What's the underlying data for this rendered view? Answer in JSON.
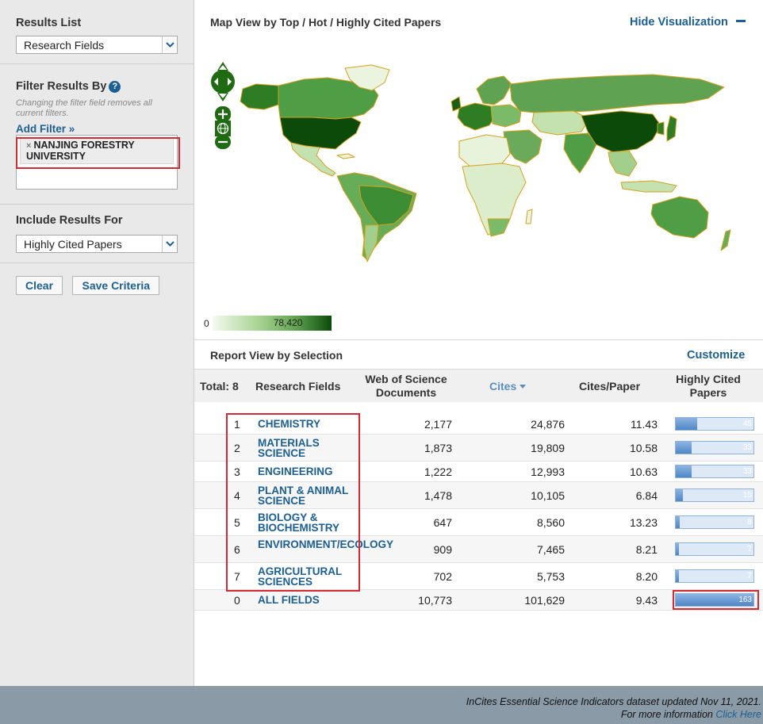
{
  "sidebar": {
    "results_list": {
      "title": "Results List",
      "selected": "Research Fields"
    },
    "filter": {
      "title": "Filter Results By",
      "help": "?",
      "hint": "Changing the filter field removes all current filters.",
      "add_filter": "Add Filter »",
      "chip": "NANJING FORESTRY UNIVERSITY",
      "chip_remove": "×"
    },
    "include": {
      "title": "Include Results For",
      "selected": "Highly Cited Papers"
    },
    "buttons": {
      "clear": "Clear",
      "save": "Save Criteria"
    }
  },
  "map_panel": {
    "title": "Map View by Top / Hot / Highly Cited Papers",
    "hide": "Hide Visualization",
    "legend_min": "0",
    "legend_max": "78,420"
  },
  "report": {
    "title": "Report View by Selection",
    "customize": "Customize",
    "headers": {
      "total": "Total: 8",
      "field": "Research Fields",
      "docs": "Web of Science Documents",
      "cites": "Cites",
      "cpp": "Cites/Paper",
      "hcp": "Highly Cited Papers"
    },
    "hcp_max": 163,
    "rows": [
      {
        "rank": "1",
        "field": "CHEMISTRY",
        "docs": "2,177",
        "cites": "24,876",
        "cpp": "11.43",
        "hcp": "45"
      },
      {
        "rank": "2",
        "field": "MATERIALS SCIENCE",
        "docs": "1,873",
        "cites": "19,809",
        "cpp": "10.58",
        "hcp": "33"
      },
      {
        "rank": "3",
        "field": "ENGINEERING",
        "docs": "1,222",
        "cites": "12,993",
        "cpp": "10.63",
        "hcp": "33"
      },
      {
        "rank": "4",
        "field": "PLANT & ANIMAL SCIENCE",
        "docs": "1,478",
        "cites": "10,105",
        "cpp": "6.84",
        "hcp": "15"
      },
      {
        "rank": "5",
        "field": "BIOLOGY & BIOCHEMISTRY",
        "docs": "647",
        "cites": "8,560",
        "cpp": "13.23",
        "hcp": "8"
      },
      {
        "rank": "6",
        "field": "ENVIRONMENT/ECOLOGY",
        "docs": "909",
        "cites": "7,465",
        "cpp": "8.21",
        "hcp": "7"
      },
      {
        "rank": "7",
        "field": "AGRICULTURAL SCIENCES",
        "docs": "702",
        "cites": "5,753",
        "cpp": "8.20",
        "hcp": "7"
      },
      {
        "rank": "0",
        "field": "ALL FIELDS",
        "docs": "10,773",
        "cites": "101,629",
        "cpp": "9.43",
        "hcp": "163"
      }
    ]
  },
  "footer": {
    "line1": "InCites Essential Science Indicators dataset updated Nov 11, 2021.",
    "line2": "For more information",
    "link": "Click Here"
  },
  "colors": {
    "accent": "#1b5f93",
    "highlight": "#d52a34",
    "map_dark": "#0b4a08"
  }
}
